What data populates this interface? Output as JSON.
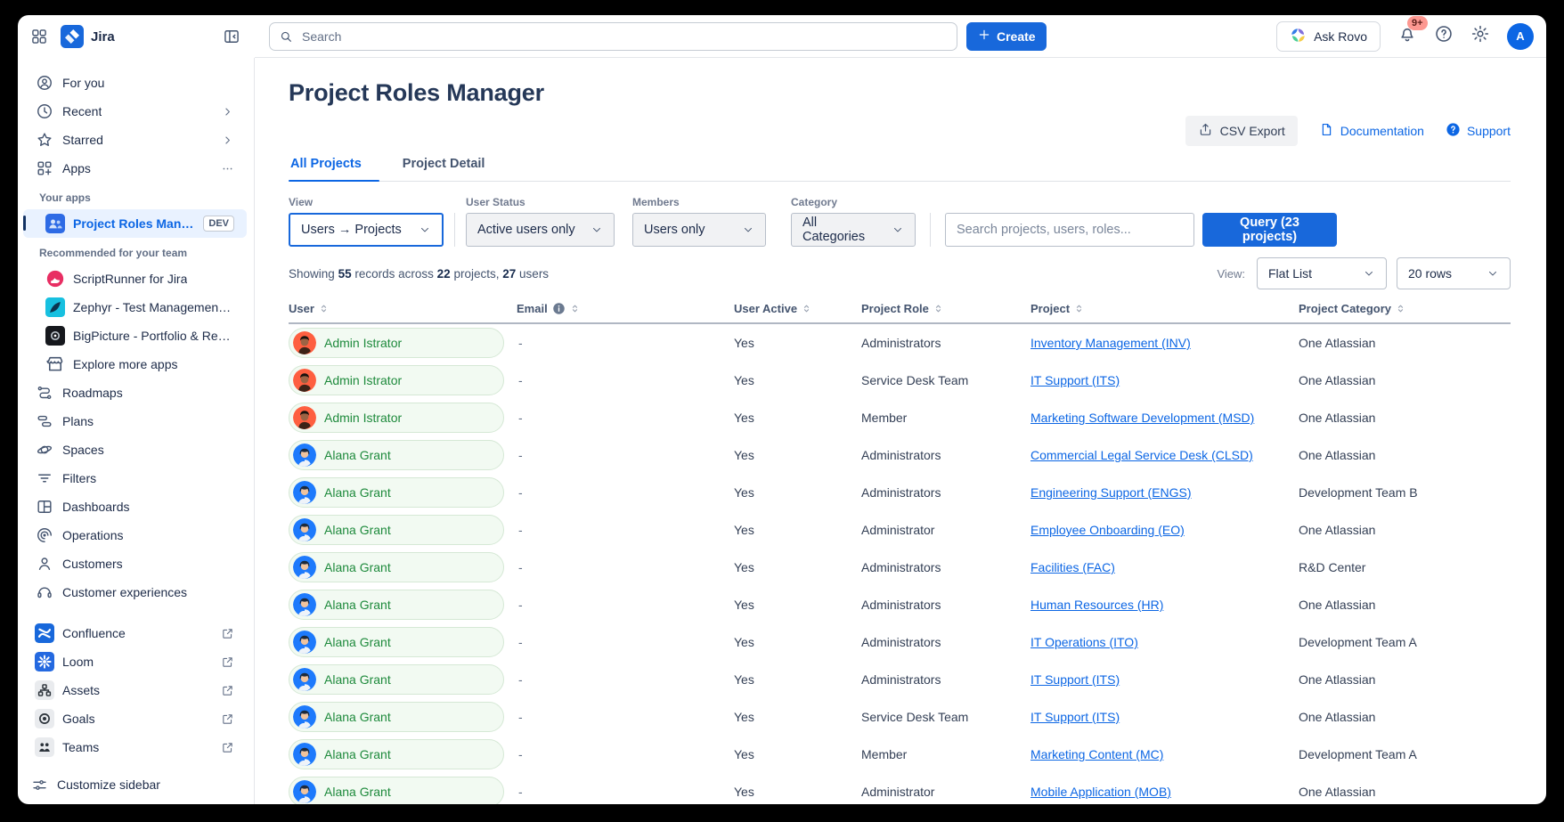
{
  "colors": {
    "accent": "#1868db",
    "link": "#0c66e4",
    "chip_text": "#1e8a3c",
    "selected_bg": "#e9f2ff",
    "badge_bg": "#fd9891",
    "badge_text": "#5d1f1a"
  },
  "topbar": {
    "brand": "Jira",
    "search_placeholder": "Search",
    "create_label": "Create",
    "ask_rovo_label": "Ask Rovo",
    "notification_count": "9+",
    "avatar_initial": "A"
  },
  "sidebar": {
    "items": [
      {
        "icon": "for-you-icon",
        "label": "For you"
      },
      {
        "icon": "recent-icon",
        "label": "Recent",
        "trailing": "chevron"
      },
      {
        "icon": "starred-icon",
        "label": "Starred",
        "trailing": "chevron"
      },
      {
        "icon": "apps-icon",
        "label": "Apps",
        "trailing": "ellipsis"
      },
      {
        "type": "label",
        "label": "Your apps"
      },
      {
        "type": "app",
        "icon": "project-roles-manager-icon",
        "label": "Project Roles Manager",
        "badge": "DEV",
        "selected": true
      },
      {
        "type": "label",
        "label": "Recommended for your team"
      },
      {
        "type": "app",
        "icon": "scriptrunner-icon",
        "label": "ScriptRunner for Jira"
      },
      {
        "type": "app",
        "icon": "zephyr-icon",
        "label": "Zephyr - Test Management ..."
      },
      {
        "type": "app",
        "icon": "bigpicture-icon",
        "label": "BigPicture - Portfolio & Res..."
      },
      {
        "type": "app",
        "icon": "explore-icon",
        "label": "Explore more apps"
      },
      {
        "icon": "roadmaps-icon",
        "label": "Roadmaps"
      },
      {
        "icon": "plans-icon",
        "label": "Plans"
      },
      {
        "icon": "spaces-icon",
        "label": "Spaces"
      },
      {
        "icon": "filters-icon",
        "label": "Filters"
      },
      {
        "icon": "dashboards-icon",
        "label": "Dashboards"
      },
      {
        "icon": "operations-icon",
        "label": "Operations"
      },
      {
        "icon": "customers-icon",
        "label": "Customers"
      },
      {
        "icon": "customer-experiences-icon",
        "label": "Customer experiences"
      },
      {
        "type": "divider"
      },
      {
        "type": "product",
        "icon": "confluence-icon",
        "label": "Confluence",
        "trailing": "external"
      },
      {
        "type": "product",
        "icon": "loom-icon",
        "label": "Loom",
        "trailing": "external"
      },
      {
        "type": "product",
        "icon": "assets-icon",
        "label": "Assets",
        "trailing": "external"
      },
      {
        "type": "product",
        "icon": "goals-icon",
        "label": "Goals",
        "trailing": "external"
      },
      {
        "type": "product",
        "icon": "teams-icon",
        "label": "Teams",
        "trailing": "external"
      }
    ],
    "footer": {
      "icon": "customize-icon",
      "label": "Customize sidebar"
    }
  },
  "main": {
    "title": "Project Roles Manager",
    "actions": {
      "csv_export": "CSV Export",
      "documentation": "Documentation",
      "support": "Support"
    },
    "tabs": [
      {
        "label": "All Projects",
        "active": true
      },
      {
        "label": "Project Detail"
      }
    ],
    "filters": {
      "view": {
        "label": "View",
        "value": "Users → Projects"
      },
      "user_status": {
        "label": "User Status",
        "value": "Active users only"
      },
      "members": {
        "label": "Members",
        "value": "Users only"
      },
      "category": {
        "label": "Category",
        "value": "All Categories"
      },
      "search_placeholder": "Search projects, users, roles...",
      "query_label": "Query (23 projects)"
    },
    "summary": {
      "s1": "Showing",
      "records": "55",
      "s2": "records across",
      "projects": "22",
      "s3": "projects,",
      "users": "27",
      "s4": "users"
    },
    "view_controls": {
      "label": "View:",
      "view_value": "Flat List",
      "rows_value": "20 rows"
    },
    "table": {
      "columns": [
        {
          "label": "User"
        },
        {
          "label": "Email",
          "info": true
        },
        {
          "label": "User Active"
        },
        {
          "label": "Project Role"
        },
        {
          "label": "Project"
        },
        {
          "label": "Project Category"
        }
      ],
      "rows": [
        {
          "user": "Admin Istrator",
          "avatar": "admin",
          "email": "-",
          "active": "Yes",
          "role": "Administrators",
          "project": "Inventory Management (INV)",
          "category": "One Atlassian"
        },
        {
          "user": "Admin Istrator",
          "avatar": "admin",
          "email": "-",
          "active": "Yes",
          "role": "Service Desk Team",
          "project": "IT Support (ITS)",
          "category": "One Atlassian"
        },
        {
          "user": "Admin Istrator",
          "avatar": "admin",
          "email": "-",
          "active": "Yes",
          "role": "Member",
          "project": "Marketing Software Development (MSD)",
          "category": "One Atlassian"
        },
        {
          "user": "Alana Grant",
          "avatar": "alana",
          "email": "-",
          "active": "Yes",
          "role": "Administrators",
          "project": "Commercial Legal Service Desk (CLSD)",
          "category": "One Atlassian"
        },
        {
          "user": "Alana Grant",
          "avatar": "alana",
          "email": "-",
          "active": "Yes",
          "role": "Administrators",
          "project": "Engineering Support (ENGS)",
          "category": "Development Team B"
        },
        {
          "user": "Alana Grant",
          "avatar": "alana",
          "email": "-",
          "active": "Yes",
          "role": "Administrator",
          "project": "Employee Onboarding (EO)",
          "category": "One Atlassian"
        },
        {
          "user": "Alana Grant",
          "avatar": "alana",
          "email": "-",
          "active": "Yes",
          "role": "Administrators",
          "project": "Facilities (FAC)",
          "category": "R&D Center"
        },
        {
          "user": "Alana Grant",
          "avatar": "alana",
          "email": "-",
          "active": "Yes",
          "role": "Administrators",
          "project": "Human Resources (HR)",
          "category": "One Atlassian"
        },
        {
          "user": "Alana Grant",
          "avatar": "alana",
          "email": "-",
          "active": "Yes",
          "role": "Administrators",
          "project": "IT Operations (ITO)",
          "category": "Development Team A"
        },
        {
          "user": "Alana Grant",
          "avatar": "alana",
          "email": "-",
          "active": "Yes",
          "role": "Administrators",
          "project": "IT Support (ITS)",
          "category": "One Atlassian"
        },
        {
          "user": "Alana Grant",
          "avatar": "alana",
          "email": "-",
          "active": "Yes",
          "role": "Service Desk Team",
          "project": "IT Support (ITS)",
          "category": "One Atlassian"
        },
        {
          "user": "Alana Grant",
          "avatar": "alana",
          "email": "-",
          "active": "Yes",
          "role": "Member",
          "project": "Marketing Content (MC)",
          "category": "Development Team A"
        },
        {
          "user": "Alana Grant",
          "avatar": "alana",
          "email": "-",
          "active": "Yes",
          "role": "Administrator",
          "project": "Mobile Application (MOB)",
          "category": "One Atlassian"
        }
      ]
    }
  }
}
